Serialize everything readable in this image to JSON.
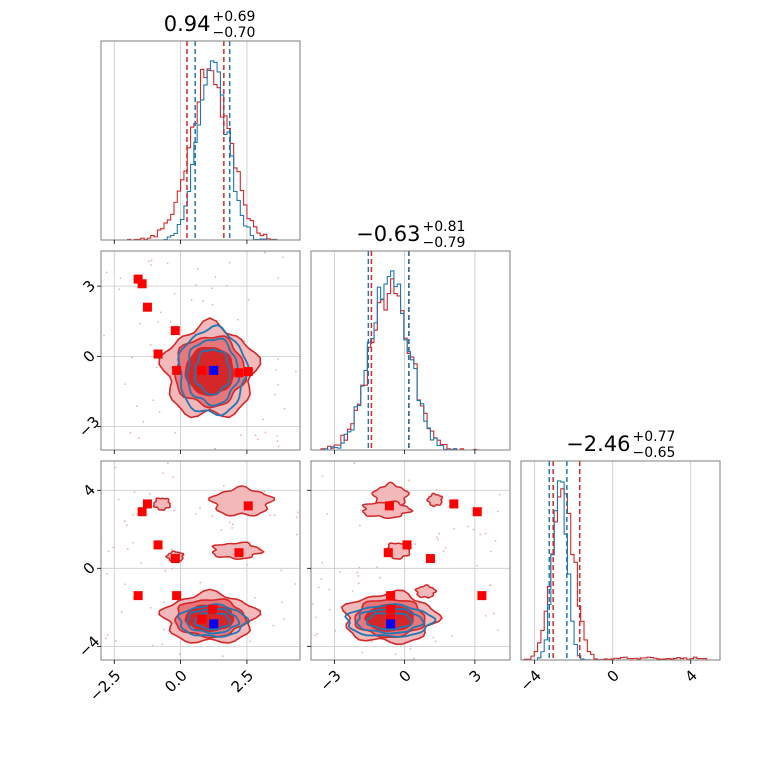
{
  "colors": {
    "red": "#d62728",
    "blue": "#1f77b4",
    "red_fill_light": "#f2b8ba",
    "red_fill_mid": "#e8777b",
    "red_fill_dark": "#d62728",
    "truth_marker_red": "#ff0000",
    "truth_marker_blue": "#0000ff"
  },
  "chart_data": {
    "type": "corner",
    "parameters": [
      {
        "name": "p1",
        "title_main": "0.94",
        "title_plus": "+0.69",
        "title_minus": "−0.70",
        "range": [
          -3.0,
          4.5
        ],
        "ticks": [
          -2.5,
          0.0,
          2.5
        ],
        "tick_labels": [
          "−2.5",
          "0.0",
          "2.5"
        ],
        "quantiles_blue": [
          0.55,
          1.85
        ],
        "quantiles_red": [
          0.24,
          1.63
        ],
        "hist_blue_mean": 1.2,
        "hist_blue_sd": 0.55,
        "hist_red_mean": 1.1,
        "hist_red_sd": 0.75
      },
      {
        "name": "p2",
        "title_main": "−0.63",
        "title_plus": "+0.81",
        "title_minus": "−0.79",
        "range": [
          -4.0,
          4.5
        ],
        "ticks": [
          -3,
          0,
          3
        ],
        "tick_labels": [
          "−3",
          "0",
          "3"
        ],
        "quantiles_blue": [
          -1.55,
          0.18
        ],
        "quantiles_red": [
          -1.42,
          0.18
        ],
        "hist_blue_mean": -0.65,
        "hist_blue_sd": 0.8,
        "hist_red_mean": -0.63,
        "hist_red_sd": 0.85
      },
      {
        "name": "p3",
        "title_main": "−2.46",
        "title_plus": "+0.77",
        "title_minus": "−0.65",
        "range": [
          -4.7,
          5.5
        ],
        "ticks": [
          -4,
          0,
          4
        ],
        "tick_labels": [
          "−4",
          "0",
          "4"
        ],
        "quantiles_blue": [
          -3.25,
          -2.35
        ],
        "quantiles_red": [
          -3.05,
          -1.69
        ],
        "hist_blue_mean": -2.7,
        "hist_blue_sd": 0.35,
        "hist_red_mean": -2.55,
        "hist_red_sd": 0.55
      }
    ],
    "truth_points_red": [
      {
        "p1": -1.6,
        "p2": 3.3,
        "p3": -1.4
      },
      {
        "p1": -1.45,
        "p2": 3.1,
        "p3": 2.9
      },
      {
        "p1": -1.25,
        "p2": 2.1,
        "p3": 3.3
      },
      {
        "p1": -0.85,
        "p2": 0.1,
        "p3": 1.2
      },
      {
        "p1": -0.2,
        "p2": 1.1,
        "p3": 0.5
      },
      {
        "p1": -0.15,
        "p2": -0.6,
        "p3": -1.4
      },
      {
        "p1": 0.8,
        "p2": -0.6,
        "p3": -2.6
      },
      {
        "p1": 1.2,
        "p2": -0.6,
        "p3": -2.1
      },
      {
        "p1": 2.2,
        "p2": -0.7,
        "p3": 0.8
      },
      {
        "p1": 2.55,
        "p2": -0.65,
        "p3": 3.2
      }
    ],
    "truth_points_blue": [
      {
        "p1": 1.25,
        "p2": -0.6,
        "p3": -2.85
      }
    ],
    "islands_p1p3": [
      {
        "mx": 2.3,
        "my": 3.4,
        "sx": 1.1,
        "sy": 0.7
      },
      {
        "mx": 2.1,
        "my": 0.9,
        "sx": 0.9,
        "sy": 0.4
      },
      {
        "mx": -0.7,
        "my": 3.3,
        "sx": 0.3,
        "sy": 0.3
      },
      {
        "mx": -0.2,
        "my": 0.6,
        "sx": 0.3,
        "sy": 0.25
      }
    ],
    "islands_p2p3": [
      {
        "mx": -0.6,
        "my": 3.7,
        "sx": 0.7,
        "sy": 0.6
      },
      {
        "mx": -0.8,
        "my": 3.0,
        "sx": 1.0,
        "sy": 0.4
      },
      {
        "mx": -0.3,
        "my": 0.9,
        "sx": 0.5,
        "sy": 0.4
      },
      {
        "mx": 1.3,
        "my": 3.5,
        "sx": 0.3,
        "sy": 0.3
      },
      {
        "mx": 0.9,
        "my": -1.2,
        "sx": 0.4,
        "sy": 0.3
      }
    ]
  }
}
